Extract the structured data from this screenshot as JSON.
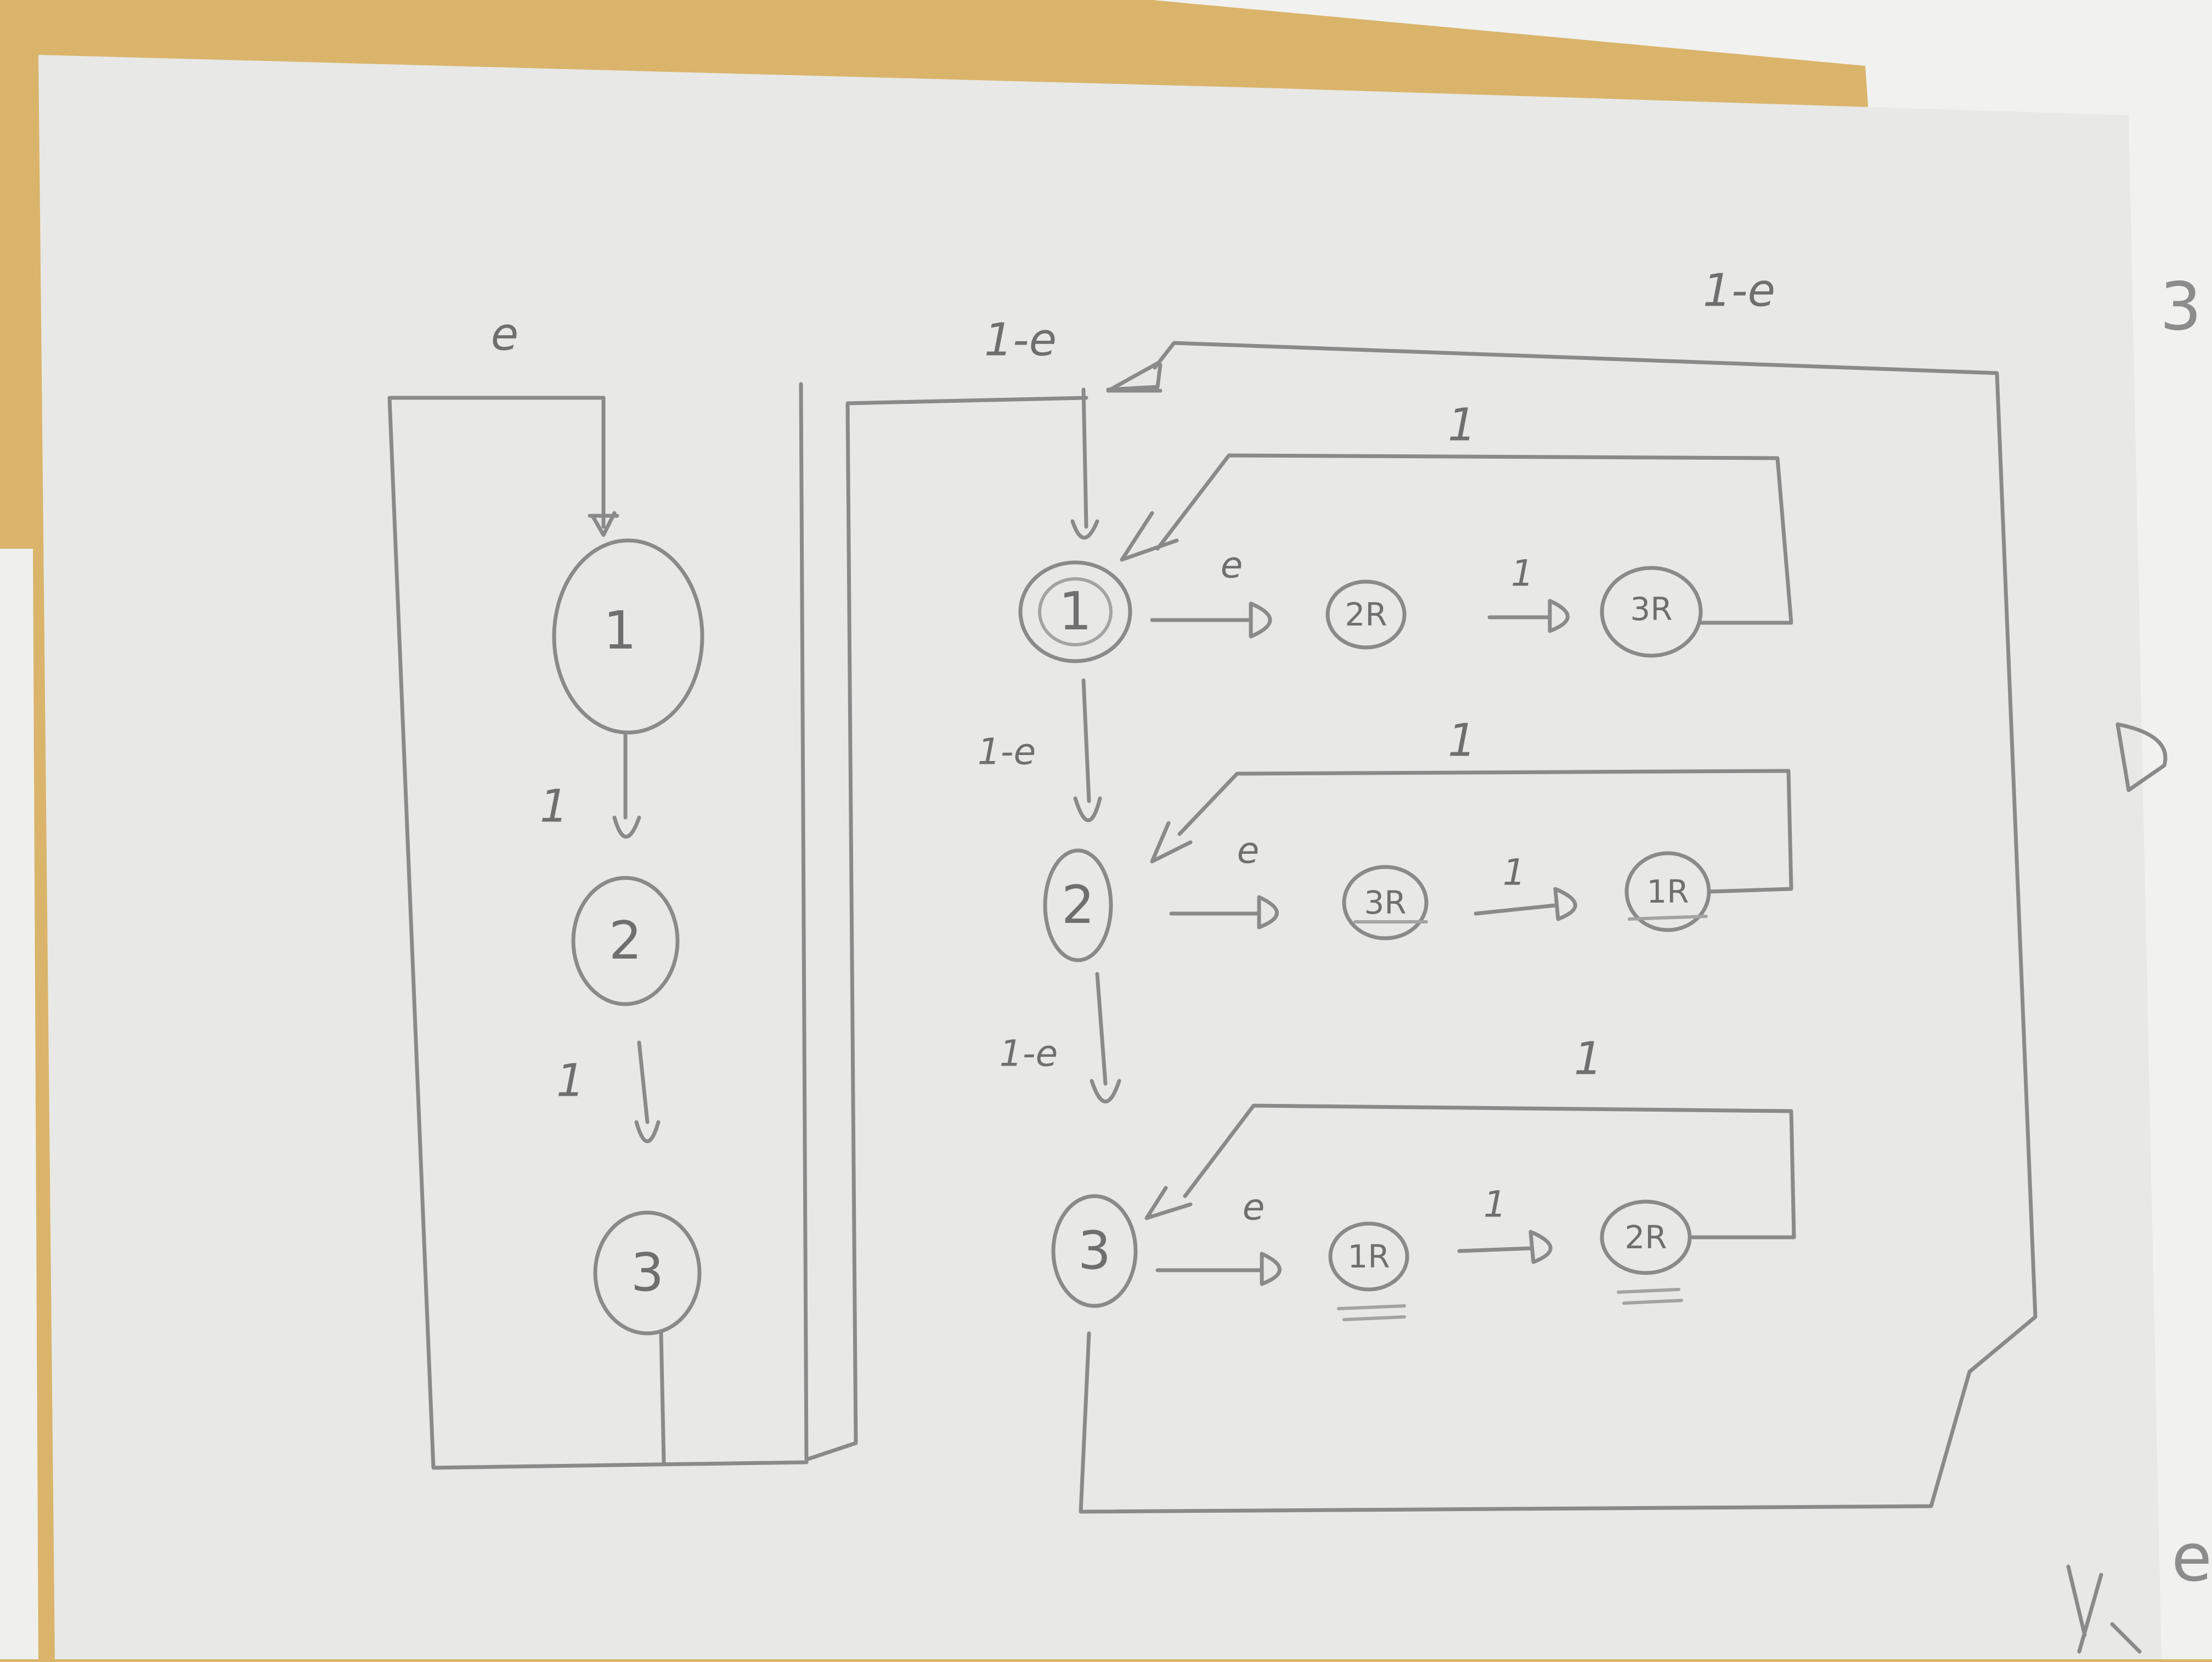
{
  "left_panel": {
    "entry_label": "e",
    "nodes": [
      {
        "id": "L1",
        "label": "1"
      },
      {
        "id": "L2",
        "label": "2"
      },
      {
        "id": "L3",
        "label": "3"
      }
    ],
    "edge_labels": [
      "1",
      "1"
    ]
  },
  "right_panel": {
    "entry_label": "1-e",
    "return_label": "1-e",
    "rows": [
      {
        "main": "1",
        "mid": "2R",
        "end": "3R",
        "edge1": "e",
        "edge2": "1",
        "loop_label": "1",
        "down_label": "1-e"
      },
      {
        "main": "2",
        "mid": "3R",
        "end": "1R",
        "edge1": "e",
        "edge2": "1",
        "loop_label": "1",
        "down_label": "1-e"
      },
      {
        "main": "3",
        "mid": "1R",
        "end": "2R",
        "edge1": "e",
        "edge2": "1",
        "loop_label": "1"
      }
    ]
  },
  "margin_marks": {
    "top_right": "3",
    "bottom_right": "e"
  },
  "colors": {
    "paper": "#ececea",
    "paper_back": "#f4f4f2",
    "desk": "#d9b46a",
    "pencil": "#8a8a8a"
  }
}
